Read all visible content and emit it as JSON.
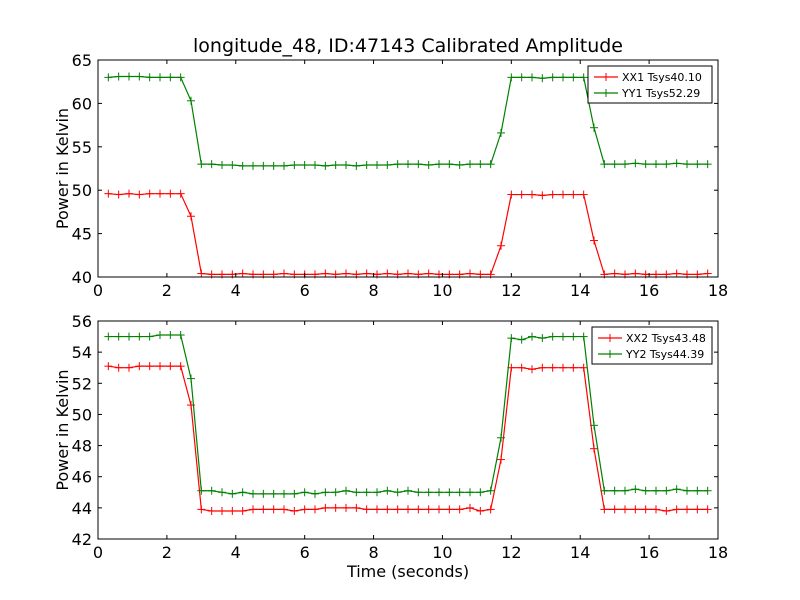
{
  "chart_data": [
    {
      "type": "line",
      "title": "longitude_48, ID:47143 Calibrated Amplitude",
      "xlabel": "",
      "ylabel": "Power in Kelvin",
      "xlim": [
        0,
        18
      ],
      "ylim": [
        40,
        65
      ],
      "xticks": [
        "0",
        "2",
        "4",
        "6",
        "8",
        "10",
        "12",
        "14",
        "16",
        "18"
      ],
      "yticks": [
        "40",
        "45",
        "50",
        "55",
        "60",
        "65"
      ],
      "grid": false,
      "legend_position": "top-right",
      "x": [
        0.3,
        0.6,
        0.9,
        1.2,
        1.5,
        1.8,
        2.1,
        2.4,
        2.7,
        3.0,
        3.3,
        3.6,
        3.9,
        4.2,
        4.5,
        4.8,
        5.1,
        5.4,
        5.7,
        6.0,
        6.3,
        6.6,
        6.9,
        7.2,
        7.5,
        7.8,
        8.1,
        8.4,
        8.7,
        9.0,
        9.3,
        9.6,
        9.9,
        10.2,
        10.5,
        10.8,
        11.1,
        11.4,
        11.7,
        12.0,
        12.3,
        12.6,
        12.9,
        13.2,
        13.5,
        13.8,
        14.1,
        14.4,
        14.7,
        15.0,
        15.3,
        15.6,
        15.9,
        16.2,
        16.5,
        16.8,
        17.1,
        17.4,
        17.7
      ],
      "series": [
        {
          "name": "XX1 Tsys40.10",
          "color": "#ff0000",
          "values": [
            49.6,
            49.5,
            49.6,
            49.5,
            49.6,
            49.6,
            49.6,
            49.6,
            47.0,
            40.4,
            40.3,
            40.3,
            40.3,
            40.4,
            40.3,
            40.3,
            40.3,
            40.4,
            40.3,
            40.3,
            40.3,
            40.4,
            40.3,
            40.4,
            40.3,
            40.4,
            40.3,
            40.4,
            40.3,
            40.4,
            40.3,
            40.4,
            40.3,
            40.3,
            40.3,
            40.4,
            40.3,
            40.3,
            43.6,
            49.5,
            49.5,
            49.5,
            49.4,
            49.5,
            49.5,
            49.5,
            49.5,
            44.2,
            40.3,
            40.4,
            40.3,
            40.4,
            40.3,
            40.3,
            40.3,
            40.4,
            40.3,
            40.3,
            40.4
          ]
        },
        {
          "name": "YY1 Tsys52.29",
          "color": "#008000",
          "values": [
            63.0,
            63.1,
            63.1,
            63.1,
            63.0,
            63.0,
            63.0,
            63.0,
            60.3,
            53.0,
            53.0,
            52.9,
            52.9,
            52.8,
            52.8,
            52.8,
            52.8,
            52.8,
            52.9,
            52.9,
            52.9,
            52.8,
            52.9,
            52.9,
            52.8,
            52.9,
            52.9,
            52.9,
            53.0,
            53.0,
            53.0,
            52.9,
            53.0,
            53.0,
            52.9,
            53.0,
            53.0,
            53.0,
            56.6,
            63.0,
            63.0,
            63.0,
            62.9,
            63.0,
            63.0,
            63.0,
            63.0,
            57.2,
            53.0,
            53.0,
            53.0,
            53.1,
            53.0,
            53.0,
            53.0,
            53.1,
            53.0,
            53.0,
            53.0
          ]
        }
      ]
    },
    {
      "type": "line",
      "title": "",
      "xlabel": "Time (seconds)",
      "ylabel": "Power in Kelvin",
      "xlim": [
        0,
        18
      ],
      "ylim": [
        42,
        56
      ],
      "xticks": [
        "0",
        "2",
        "4",
        "6",
        "8",
        "10",
        "12",
        "14",
        "16",
        "18"
      ],
      "yticks": [
        "42",
        "44",
        "46",
        "48",
        "50",
        "52",
        "54",
        "56"
      ],
      "grid": false,
      "legend_position": "top-right",
      "x": [
        0.3,
        0.6,
        0.9,
        1.2,
        1.5,
        1.8,
        2.1,
        2.4,
        2.7,
        3.0,
        3.3,
        3.6,
        3.9,
        4.2,
        4.5,
        4.8,
        5.1,
        5.4,
        5.7,
        6.0,
        6.3,
        6.6,
        6.9,
        7.2,
        7.5,
        7.8,
        8.1,
        8.4,
        8.7,
        9.0,
        9.3,
        9.6,
        9.9,
        10.2,
        10.5,
        10.8,
        11.1,
        11.4,
        11.7,
        12.0,
        12.3,
        12.6,
        12.9,
        13.2,
        13.5,
        13.8,
        14.1,
        14.4,
        14.7,
        15.0,
        15.3,
        15.6,
        15.9,
        16.2,
        16.5,
        16.8,
        17.1,
        17.4,
        17.7
      ],
      "series": [
        {
          "name": "XX2 Tsys43.48",
          "color": "#ff0000",
          "values": [
            53.1,
            53.0,
            53.0,
            53.1,
            53.1,
            53.1,
            53.1,
            53.1,
            50.6,
            43.9,
            43.8,
            43.8,
            43.8,
            43.8,
            43.9,
            43.9,
            43.9,
            43.9,
            43.8,
            43.9,
            43.9,
            44.0,
            44.0,
            44.0,
            44.0,
            43.9,
            43.9,
            43.9,
            43.9,
            43.9,
            43.9,
            43.9,
            43.9,
            43.9,
            43.9,
            44.0,
            43.8,
            43.9,
            47.1,
            53.0,
            53.0,
            52.9,
            53.0,
            53.0,
            53.0,
            53.0,
            53.0,
            47.8,
            43.9,
            43.9,
            43.9,
            43.9,
            43.9,
            43.9,
            43.8,
            43.9,
            43.9,
            43.9,
            43.9
          ]
        },
        {
          "name": "YY2 Tsys44.39",
          "color": "#008000",
          "values": [
            55.0,
            55.0,
            55.0,
            55.0,
            55.0,
            55.1,
            55.1,
            55.1,
            52.3,
            45.1,
            45.1,
            45.0,
            44.9,
            45.0,
            44.9,
            44.9,
            44.9,
            44.9,
            44.9,
            45.0,
            44.9,
            45.0,
            45.0,
            45.1,
            45.0,
            45.0,
            45.0,
            45.1,
            45.0,
            45.1,
            45.0,
            45.0,
            45.0,
            45.0,
            45.0,
            45.0,
            45.0,
            45.1,
            48.5,
            54.9,
            54.8,
            55.0,
            54.9,
            55.0,
            55.0,
            55.0,
            55.0,
            49.3,
            45.1,
            45.1,
            45.1,
            45.2,
            45.1,
            45.1,
            45.1,
            45.2,
            45.1,
            45.1,
            45.1
          ]
        }
      ]
    }
  ]
}
